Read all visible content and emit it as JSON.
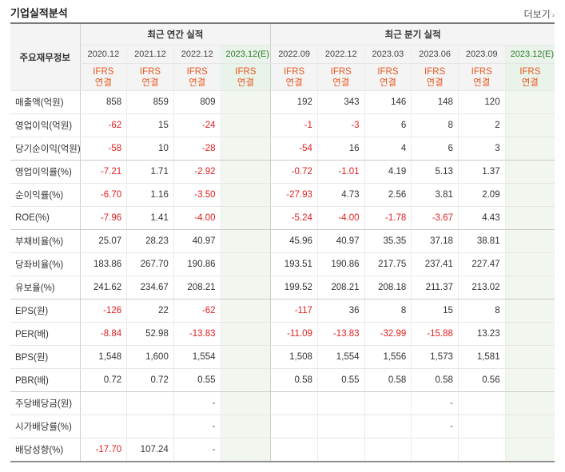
{
  "header": {
    "title": "기업실적분석",
    "more_label": "더보기"
  },
  "table": {
    "row_header_label": "주요재무정보",
    "groups": [
      "최근 연간 실적",
      "최근 분기 실적"
    ],
    "annual_periods": [
      "2020.12",
      "2021.12",
      "2022.12",
      "2023.12(E)"
    ],
    "quarter_periods": [
      "2022.09",
      "2022.12",
      "2023.03",
      "2023.06",
      "2023.09",
      "2023.12(E)"
    ],
    "ifrs_label": "IFRS",
    "consol_label": "연결",
    "rows": [
      {
        "label": "매출액(억원)",
        "annual": [
          "858",
          "859",
          "809",
          ""
        ],
        "quarter": [
          "192",
          "343",
          "146",
          "148",
          "120",
          ""
        ]
      },
      {
        "label": "영업이익(억원)",
        "annual": [
          "-62",
          "15",
          "-24",
          ""
        ],
        "quarter": [
          "-1",
          "-3",
          "6",
          "8",
          "2",
          ""
        ]
      },
      {
        "label": "당기순이익(억원)",
        "annual": [
          "-58",
          "10",
          "-28",
          ""
        ],
        "quarter": [
          "-54",
          "16",
          "4",
          "6",
          "3",
          ""
        ]
      },
      {
        "label": "영업이익률(%)",
        "annual": [
          "-7.21",
          "1.71",
          "-2.92",
          ""
        ],
        "quarter": [
          "-0.72",
          "-1.01",
          "4.19",
          "5.13",
          "1.37",
          ""
        ]
      },
      {
        "label": "순이익률(%)",
        "annual": [
          "-6.70",
          "1.16",
          "-3.50",
          ""
        ],
        "quarter": [
          "-27.93",
          "4.73",
          "2.56",
          "3.81",
          "2.09",
          ""
        ]
      },
      {
        "label": "ROE(%)",
        "annual": [
          "-7.96",
          "1.41",
          "-4.00",
          ""
        ],
        "quarter": [
          "-5.24",
          "-4.00",
          "-1.78",
          "-3.67",
          "4.43",
          ""
        ]
      },
      {
        "label": "부채비율(%)",
        "annual": [
          "25.07",
          "28.23",
          "40.97",
          ""
        ],
        "quarter": [
          "45.96",
          "40.97",
          "35.35",
          "37.18",
          "38.81",
          ""
        ]
      },
      {
        "label": "당좌비율(%)",
        "annual": [
          "183.86",
          "267.70",
          "190.86",
          ""
        ],
        "quarter": [
          "193.51",
          "190.86",
          "217.75",
          "237.41",
          "227.47",
          ""
        ]
      },
      {
        "label": "유보율(%)",
        "annual": [
          "241.62",
          "234.67",
          "208.21",
          ""
        ],
        "quarter": [
          "199.52",
          "208.21",
          "208.18",
          "211.37",
          "213.02",
          ""
        ]
      },
      {
        "label": "EPS(원)",
        "annual": [
          "-126",
          "22",
          "-62",
          ""
        ],
        "quarter": [
          "-117",
          "36",
          "8",
          "15",
          "8",
          ""
        ]
      },
      {
        "label": "PER(배)",
        "annual": [
          "-8.84",
          "52.98",
          "-13.83",
          ""
        ],
        "quarter": [
          "-11.09",
          "-13.83",
          "-32.99",
          "-15.88",
          "13.23",
          ""
        ]
      },
      {
        "label": "BPS(원)",
        "annual": [
          "1,548",
          "1,600",
          "1,554",
          ""
        ],
        "quarter": [
          "1,508",
          "1,554",
          "1,556",
          "1,573",
          "1,581",
          ""
        ]
      },
      {
        "label": "PBR(배)",
        "annual": [
          "0.72",
          "0.72",
          "0.55",
          ""
        ],
        "quarter": [
          "0.58",
          "0.55",
          "0.58",
          "0.58",
          "0.56",
          ""
        ]
      },
      {
        "label": "주당배당금(원)",
        "annual": [
          "",
          "",
          "-",
          ""
        ],
        "quarter": [
          "",
          "",
          "",
          "-",
          "",
          ""
        ]
      },
      {
        "label": "시가배당률(%)",
        "annual": [
          "",
          "",
          "-",
          ""
        ],
        "quarter": [
          "",
          "",
          "",
          "-",
          "",
          ""
        ]
      },
      {
        "label": "배당성향(%)",
        "annual": [
          "-17.70",
          "107.24",
          "-",
          ""
        ],
        "quarter": [
          "",
          "",
          "",
          "",
          "",
          ""
        ]
      }
    ]
  },
  "colors": {
    "negative": "#e01f1f",
    "ifrs": "#e8571e",
    "estimate_bg": "#eaf3ea"
  }
}
